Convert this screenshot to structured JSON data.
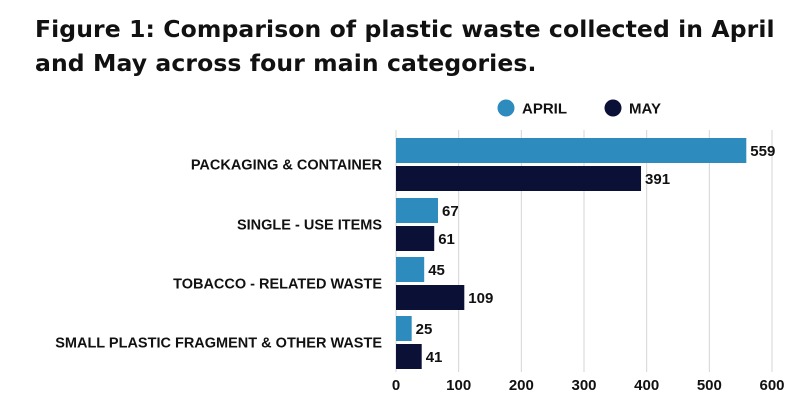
{
  "chart_data": {
    "type": "bar",
    "orientation": "horizontal",
    "title": "Figure 1: Comparison of plastic waste collected in April and May across four main categories.",
    "categories": [
      "PACKAGING & CONTAINER",
      "SINGLE - USE ITEMS",
      "TOBACCO - RELATED WASTE",
      "SMALL PLASTIC FRAGMENT & OTHER WASTE"
    ],
    "series": [
      {
        "name": "APRIL",
        "color": "#2e8bbd",
        "values": [
          559,
          67,
          45,
          25
        ]
      },
      {
        "name": "MAY",
        "color": "#0b1036",
        "values": [
          391,
          61,
          109,
          41
        ]
      }
    ],
    "xlim": [
      0,
      600
    ],
    "xticks": [
      0,
      100,
      200,
      300,
      400,
      500,
      600
    ],
    "grid": true,
    "legend_position": "top-right",
    "data_labels": true
  }
}
